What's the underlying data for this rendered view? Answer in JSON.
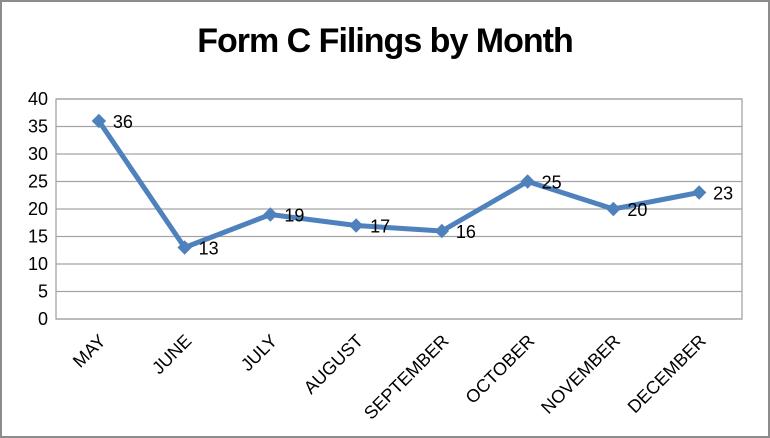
{
  "chart_data": {
    "type": "line",
    "title": "Form C Filings by Month",
    "categories": [
      "MAY",
      "JUNE",
      "JULY",
      "AUGUST",
      "SEPTEMBER",
      "OCTOBER",
      "NOVEMBER",
      "DECEMBER"
    ],
    "values": [
      36,
      13,
      19,
      17,
      16,
      25,
      20,
      23
    ],
    "xlabel": "",
    "ylabel": "",
    "ylim": [
      0,
      40
    ],
    "ytick_step": 5,
    "ytick_labels": [
      "0",
      "5",
      "10",
      "15",
      "20",
      "25",
      "30",
      "35",
      "40"
    ],
    "data_labels": [
      "36",
      "13",
      "19",
      "17",
      "16",
      "25",
      "20",
      "23"
    ],
    "data_label_position": "right",
    "grid": "horizontal",
    "legend": "none",
    "marker": "diamond",
    "colors": {
      "line": "#4F81BD",
      "marker": "#4F81BD",
      "gridline": "#A3A3A3",
      "plot_border": "#A3A3A3",
      "text": "#000000",
      "frame_border": "#8C8C8C",
      "background": "#FFFFFF"
    }
  }
}
